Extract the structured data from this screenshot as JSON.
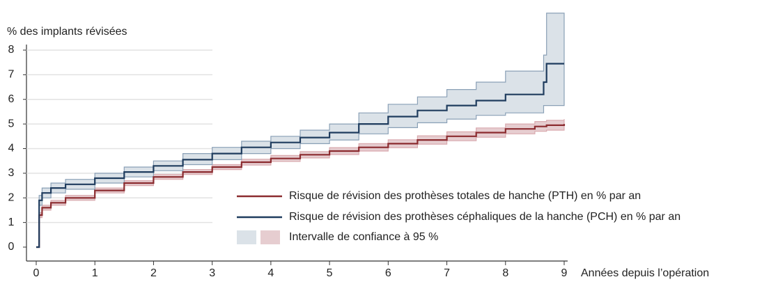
{
  "chart_data": {
    "type": "line",
    "ylabel": "% des implants révisées",
    "xlabel": "Années depuis l’opération",
    "xlim": [
      0,
      9
    ],
    "ylim": [
      -0.5,
      8
    ],
    "xticks": [
      0,
      1,
      2,
      3,
      4,
      5,
      6,
      7,
      8,
      9
    ],
    "yticks": [
      0,
      1,
      2,
      3,
      4,
      5,
      6,
      7,
      8
    ],
    "grid": true,
    "step": true,
    "x": [
      0,
      0.05,
      0.1,
      0.25,
      0.5,
      1,
      1.5,
      2,
      2.5,
      3,
      3.5,
      4,
      4.5,
      5,
      5.5,
      6,
      6.5,
      7,
      7.5,
      8,
      8.5,
      8.65,
      8.7,
      9
    ],
    "series": [
      {
        "name": "Risque de révision des prothèses totales de hanche (PTH) en % par an",
        "color": "#8b2b2f",
        "band_color": "#e6cdd0",
        "values": [
          0,
          1.3,
          1.6,
          1.8,
          2.0,
          2.3,
          2.6,
          2.85,
          3.05,
          3.25,
          3.45,
          3.6,
          3.75,
          3.9,
          4.05,
          4.2,
          4.35,
          4.5,
          4.65,
          4.8,
          4.9,
          4.9,
          4.95,
          5.0
        ],
        "lower": [
          0,
          1.2,
          1.5,
          1.7,
          1.9,
          2.2,
          2.5,
          2.75,
          2.95,
          3.15,
          3.33,
          3.48,
          3.62,
          3.76,
          3.9,
          4.04,
          4.18,
          4.32,
          4.46,
          4.6,
          4.7,
          4.7,
          4.75,
          4.8
        ],
        "upper": [
          0,
          1.4,
          1.7,
          1.9,
          2.1,
          2.4,
          2.7,
          2.95,
          3.15,
          3.35,
          3.57,
          3.72,
          3.88,
          4.04,
          4.2,
          4.36,
          4.52,
          4.68,
          4.84,
          5.0,
          5.1,
          5.1,
          5.15,
          5.2
        ]
      },
      {
        "name": "Risque de révision des prothèses céphaliques de la hanche (PCH) en % par an",
        "color": "#1f3c5e",
        "band_color": "#dbe2e8",
        "values": [
          0,
          1.9,
          2.2,
          2.4,
          2.55,
          2.8,
          3.05,
          3.3,
          3.55,
          3.8,
          4.05,
          4.25,
          4.45,
          4.65,
          5.0,
          5.3,
          5.55,
          5.75,
          5.95,
          6.2,
          6.2,
          6.7,
          7.45,
          7.45
        ],
        "lower": [
          0,
          1.7,
          2.0,
          2.2,
          2.35,
          2.6,
          2.85,
          3.1,
          3.35,
          3.55,
          3.8,
          4.0,
          4.2,
          4.35,
          4.6,
          4.85,
          5.05,
          5.2,
          5.35,
          5.45,
          5.45,
          5.75,
          5.75,
          5.75
        ],
        "upper": [
          0,
          2.1,
          2.4,
          2.6,
          2.75,
          3.0,
          3.25,
          3.5,
          3.8,
          4.05,
          4.3,
          4.5,
          4.75,
          5.0,
          5.45,
          5.8,
          6.1,
          6.4,
          6.7,
          7.15,
          7.15,
          7.8,
          9.5,
          9.5
        ]
      }
    ],
    "band_label": "Intervalle de confiance à 95 %"
  }
}
